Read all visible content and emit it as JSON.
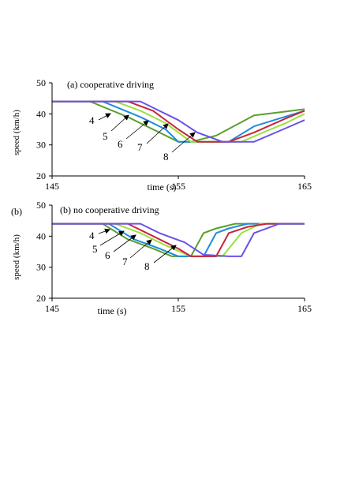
{
  "chart_data": [
    {
      "type": "line",
      "panel_label": "",
      "title": "(a) cooperative driving",
      "xlabel": "time (s)",
      "ylabel": "speed (km/h)",
      "xlim": [
        145,
        165
      ],
      "ylim": [
        20,
        50
      ],
      "xticks": [
        145,
        155,
        165
      ],
      "yticks": [
        20,
        30,
        40,
        50
      ],
      "grid": false,
      "series": [
        {
          "name": "4",
          "color": "#5aa02c",
          "x": [
            145,
            148,
            151,
            153,
            155,
            156,
            158,
            161,
            163,
            165
          ],
          "y": [
            44,
            44,
            39,
            35,
            31,
            31,
            33,
            39.5,
            40.5,
            41.5
          ]
        },
        {
          "name": "5",
          "color": "#1f8ce0",
          "x": [
            145,
            149,
            152,
            154,
            155,
            157,
            159,
            161,
            163,
            165
          ],
          "y": [
            44,
            44,
            39,
            35,
            31,
            31,
            31,
            36,
            38.5,
            41
          ]
        },
        {
          "name": "6",
          "color": "#9ae03c",
          "x": [
            145,
            150,
            152,
            154,
            156,
            158,
            160,
            162,
            163.5,
            165
          ],
          "y": [
            44,
            44,
            41,
            37,
            31,
            31,
            31,
            34.5,
            37,
            40
          ]
        },
        {
          "name": "7",
          "color": "#c8243a",
          "x": [
            145,
            151,
            153,
            155,
            156.5,
            158,
            159,
            161,
            163.5,
            165
          ],
          "y": [
            44,
            44,
            41,
            35,
            31,
            31,
            31,
            34,
            38.5,
            41
          ]
        },
        {
          "name": "8",
          "color": "#6a52e8",
          "x": [
            145,
            152,
            153,
            155,
            156.5,
            158.5,
            161,
            163,
            165
          ],
          "y": [
            44,
            44,
            42,
            38,
            34,
            31,
            31,
            34.5,
            38
          ]
        }
      ],
      "annotations": [
        "4",
        "5",
        "6",
        "7",
        "8"
      ]
    },
    {
      "type": "line",
      "panel_label": "(b)",
      "title": "(b) no cooperative driving",
      "xlabel": "time (s)",
      "ylabel": "speed (km/h)",
      "xlim": [
        145,
        165
      ],
      "ylim": [
        20,
        50
      ],
      "xticks": [
        145,
        155,
        165
      ],
      "yticks": [
        20,
        30,
        40,
        50
      ],
      "grid": false,
      "series": [
        {
          "name": "4",
          "color": "#5aa02c",
          "x": [
            145,
            149,
            151,
            153,
            154.5,
            156,
            157,
            158,
            159.5,
            165
          ],
          "y": [
            44,
            44,
            39,
            36,
            33.5,
            33.5,
            41,
            42.5,
            44,
            44
          ]
        },
        {
          "name": "5",
          "color": "#1f8ce0",
          "x": [
            145,
            149.5,
            151.5,
            153.5,
            155,
            157,
            158,
            159,
            160.5,
            165
          ],
          "y": [
            44,
            44,
            39,
            36,
            33.5,
            33.5,
            41,
            42.5,
            44,
            44
          ]
        },
        {
          "name": "6",
          "color": "#9ae03c",
          "x": [
            145,
            150,
            152,
            154,
            156,
            157.5,
            158.5,
            160,
            161.5,
            165
          ],
          "y": [
            44,
            44,
            41,
            37,
            33.5,
            33.5,
            33.5,
            41,
            44,
            44
          ]
        },
        {
          "name": "7",
          "color": "#c8243a",
          "x": [
            145,
            151,
            153,
            155,
            156,
            158,
            159,
            160.5,
            162,
            165
          ],
          "y": [
            44,
            44,
            40,
            36,
            33.5,
            33.5,
            41,
            43,
            44,
            44
          ]
        },
        {
          "name": "8",
          "color": "#6a52e8",
          "x": [
            145,
            152,
            153.5,
            155.5,
            157,
            159,
            160,
            161,
            163,
            165
          ],
          "y": [
            44,
            44,
            41,
            38,
            34,
            33.5,
            33.5,
            41,
            44,
            44
          ]
        }
      ],
      "annotations": [
        "4",
        "5",
        "6",
        "7",
        "8"
      ]
    }
  ]
}
